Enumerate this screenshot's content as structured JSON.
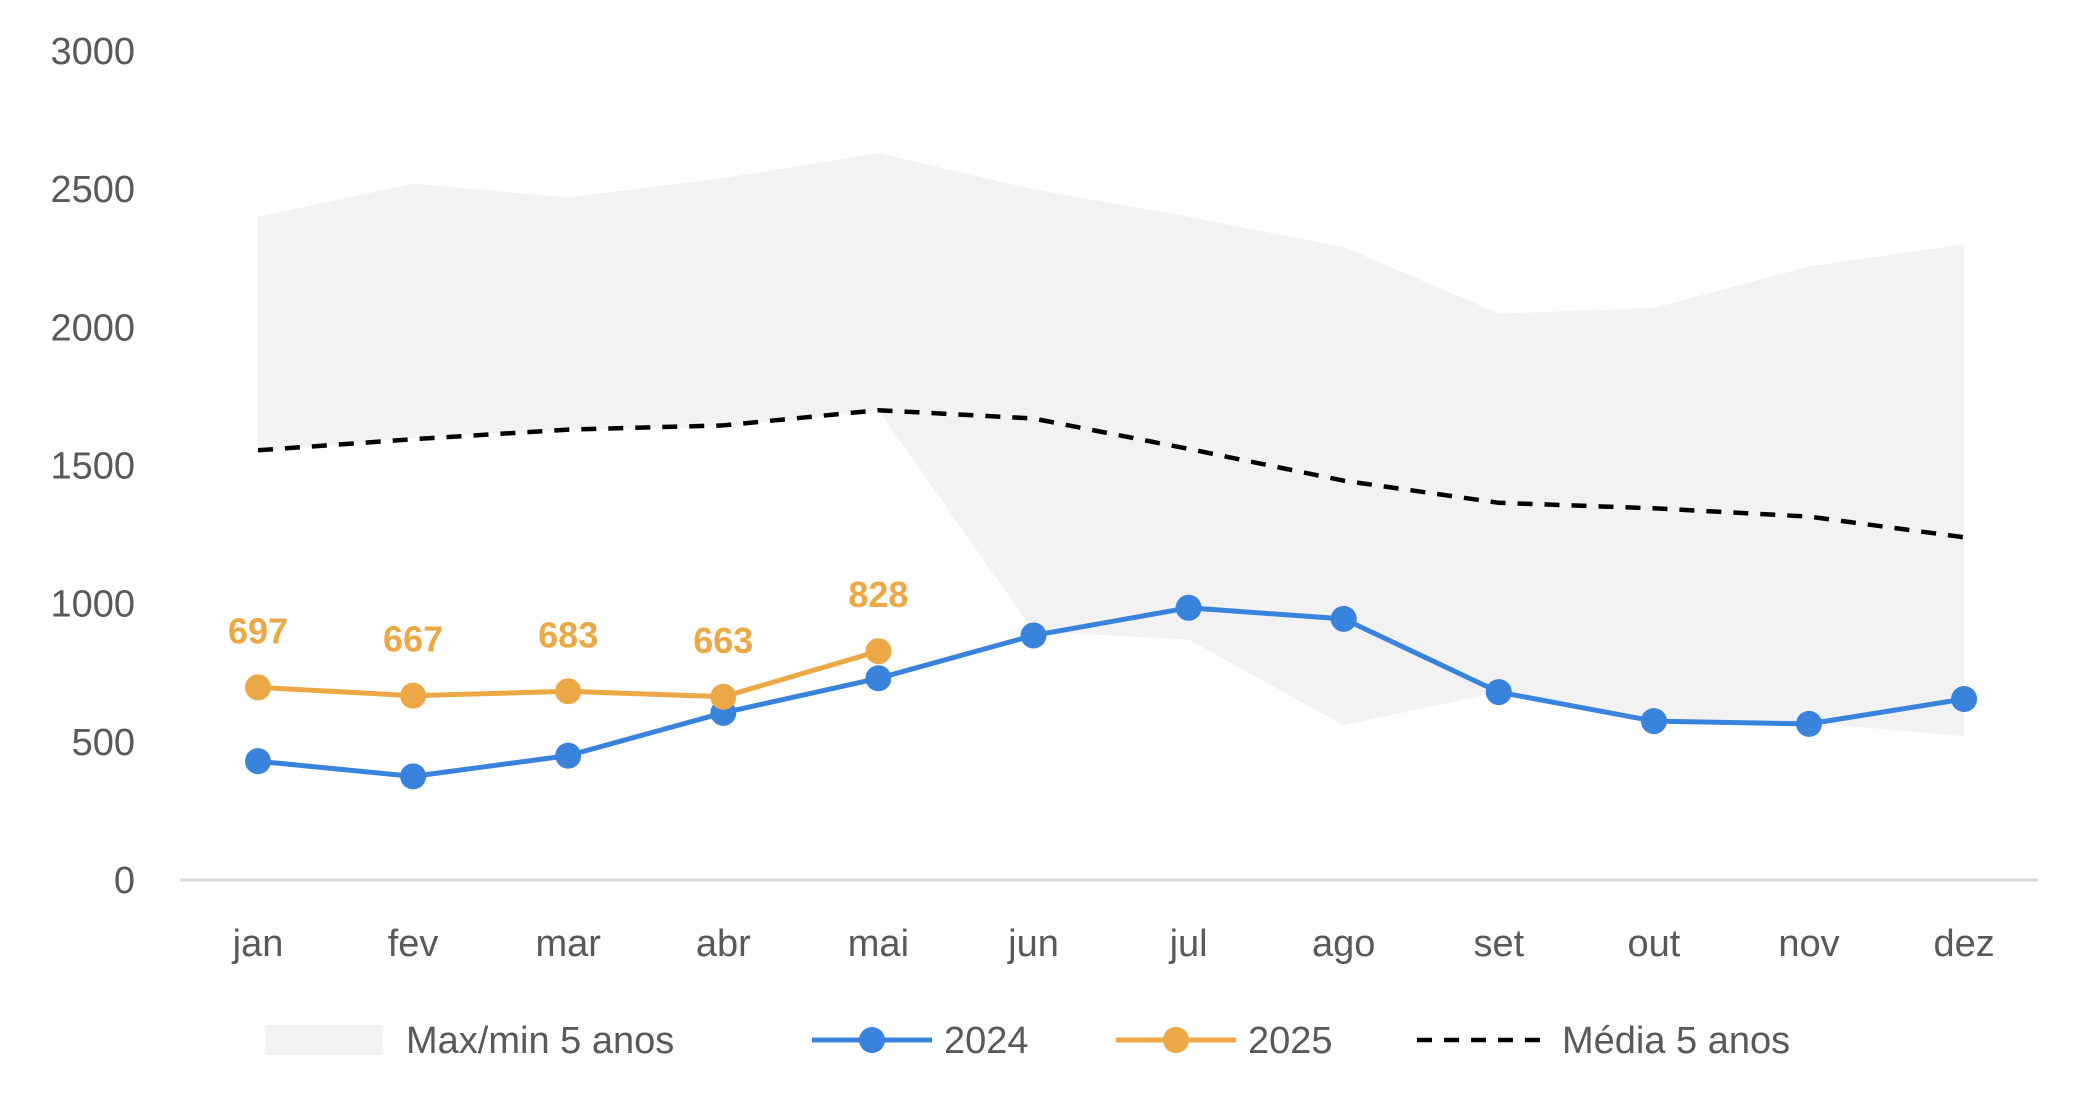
{
  "chart_data": {
    "type": "line",
    "categories": [
      "jan",
      "fev",
      "mar",
      "abr",
      "mai",
      "jun",
      "jul",
      "ago",
      "set",
      "out",
      "nov",
      "dez"
    ],
    "ylim": [
      0,
      3000
    ],
    "yticks": [
      0,
      500,
      1000,
      1500,
      2000,
      2500,
      3000
    ],
    "grid": false,
    "legend_position": "bottom",
    "band": {
      "name": "Max/min 5 anos",
      "max": [
        2400,
        2520,
        2470,
        2540,
        2630,
        2500,
        2400,
        2290,
        2050,
        2070,
        2220,
        2300
      ],
      "min": [
        1550,
        1600,
        1630,
        1640,
        1700,
        900,
        870,
        560,
        680,
        580,
        570,
        520
      ],
      "color": "#f2f2f2"
    },
    "series": [
      {
        "name": "2024",
        "values": [
          430,
          375,
          450,
          605,
          730,
          885,
          985,
          945,
          680,
          575,
          565,
          655
        ],
        "color": "#3a83dc",
        "marker": true,
        "data_labels": false
      },
      {
        "name": "2025",
        "values": [
          697,
          667,
          683,
          663,
          828,
          null,
          null,
          null,
          null,
          null,
          null,
          null
        ],
        "color": "#eca844",
        "marker": true,
        "data_labels": true
      },
      {
        "name": "Média 5 anos",
        "values": [
          1555,
          1595,
          1630,
          1645,
          1700,
          1670,
          1560,
          1445,
          1365,
          1345,
          1315,
          1240
        ],
        "color": "#000000",
        "dashed": true,
        "marker": false,
        "data_labels": false
      }
    ],
    "legend": [
      "Max/min 5 anos",
      "2024",
      "2025",
      "Média 5 anos"
    ],
    "title": "",
    "xlabel": "",
    "ylabel": ""
  }
}
